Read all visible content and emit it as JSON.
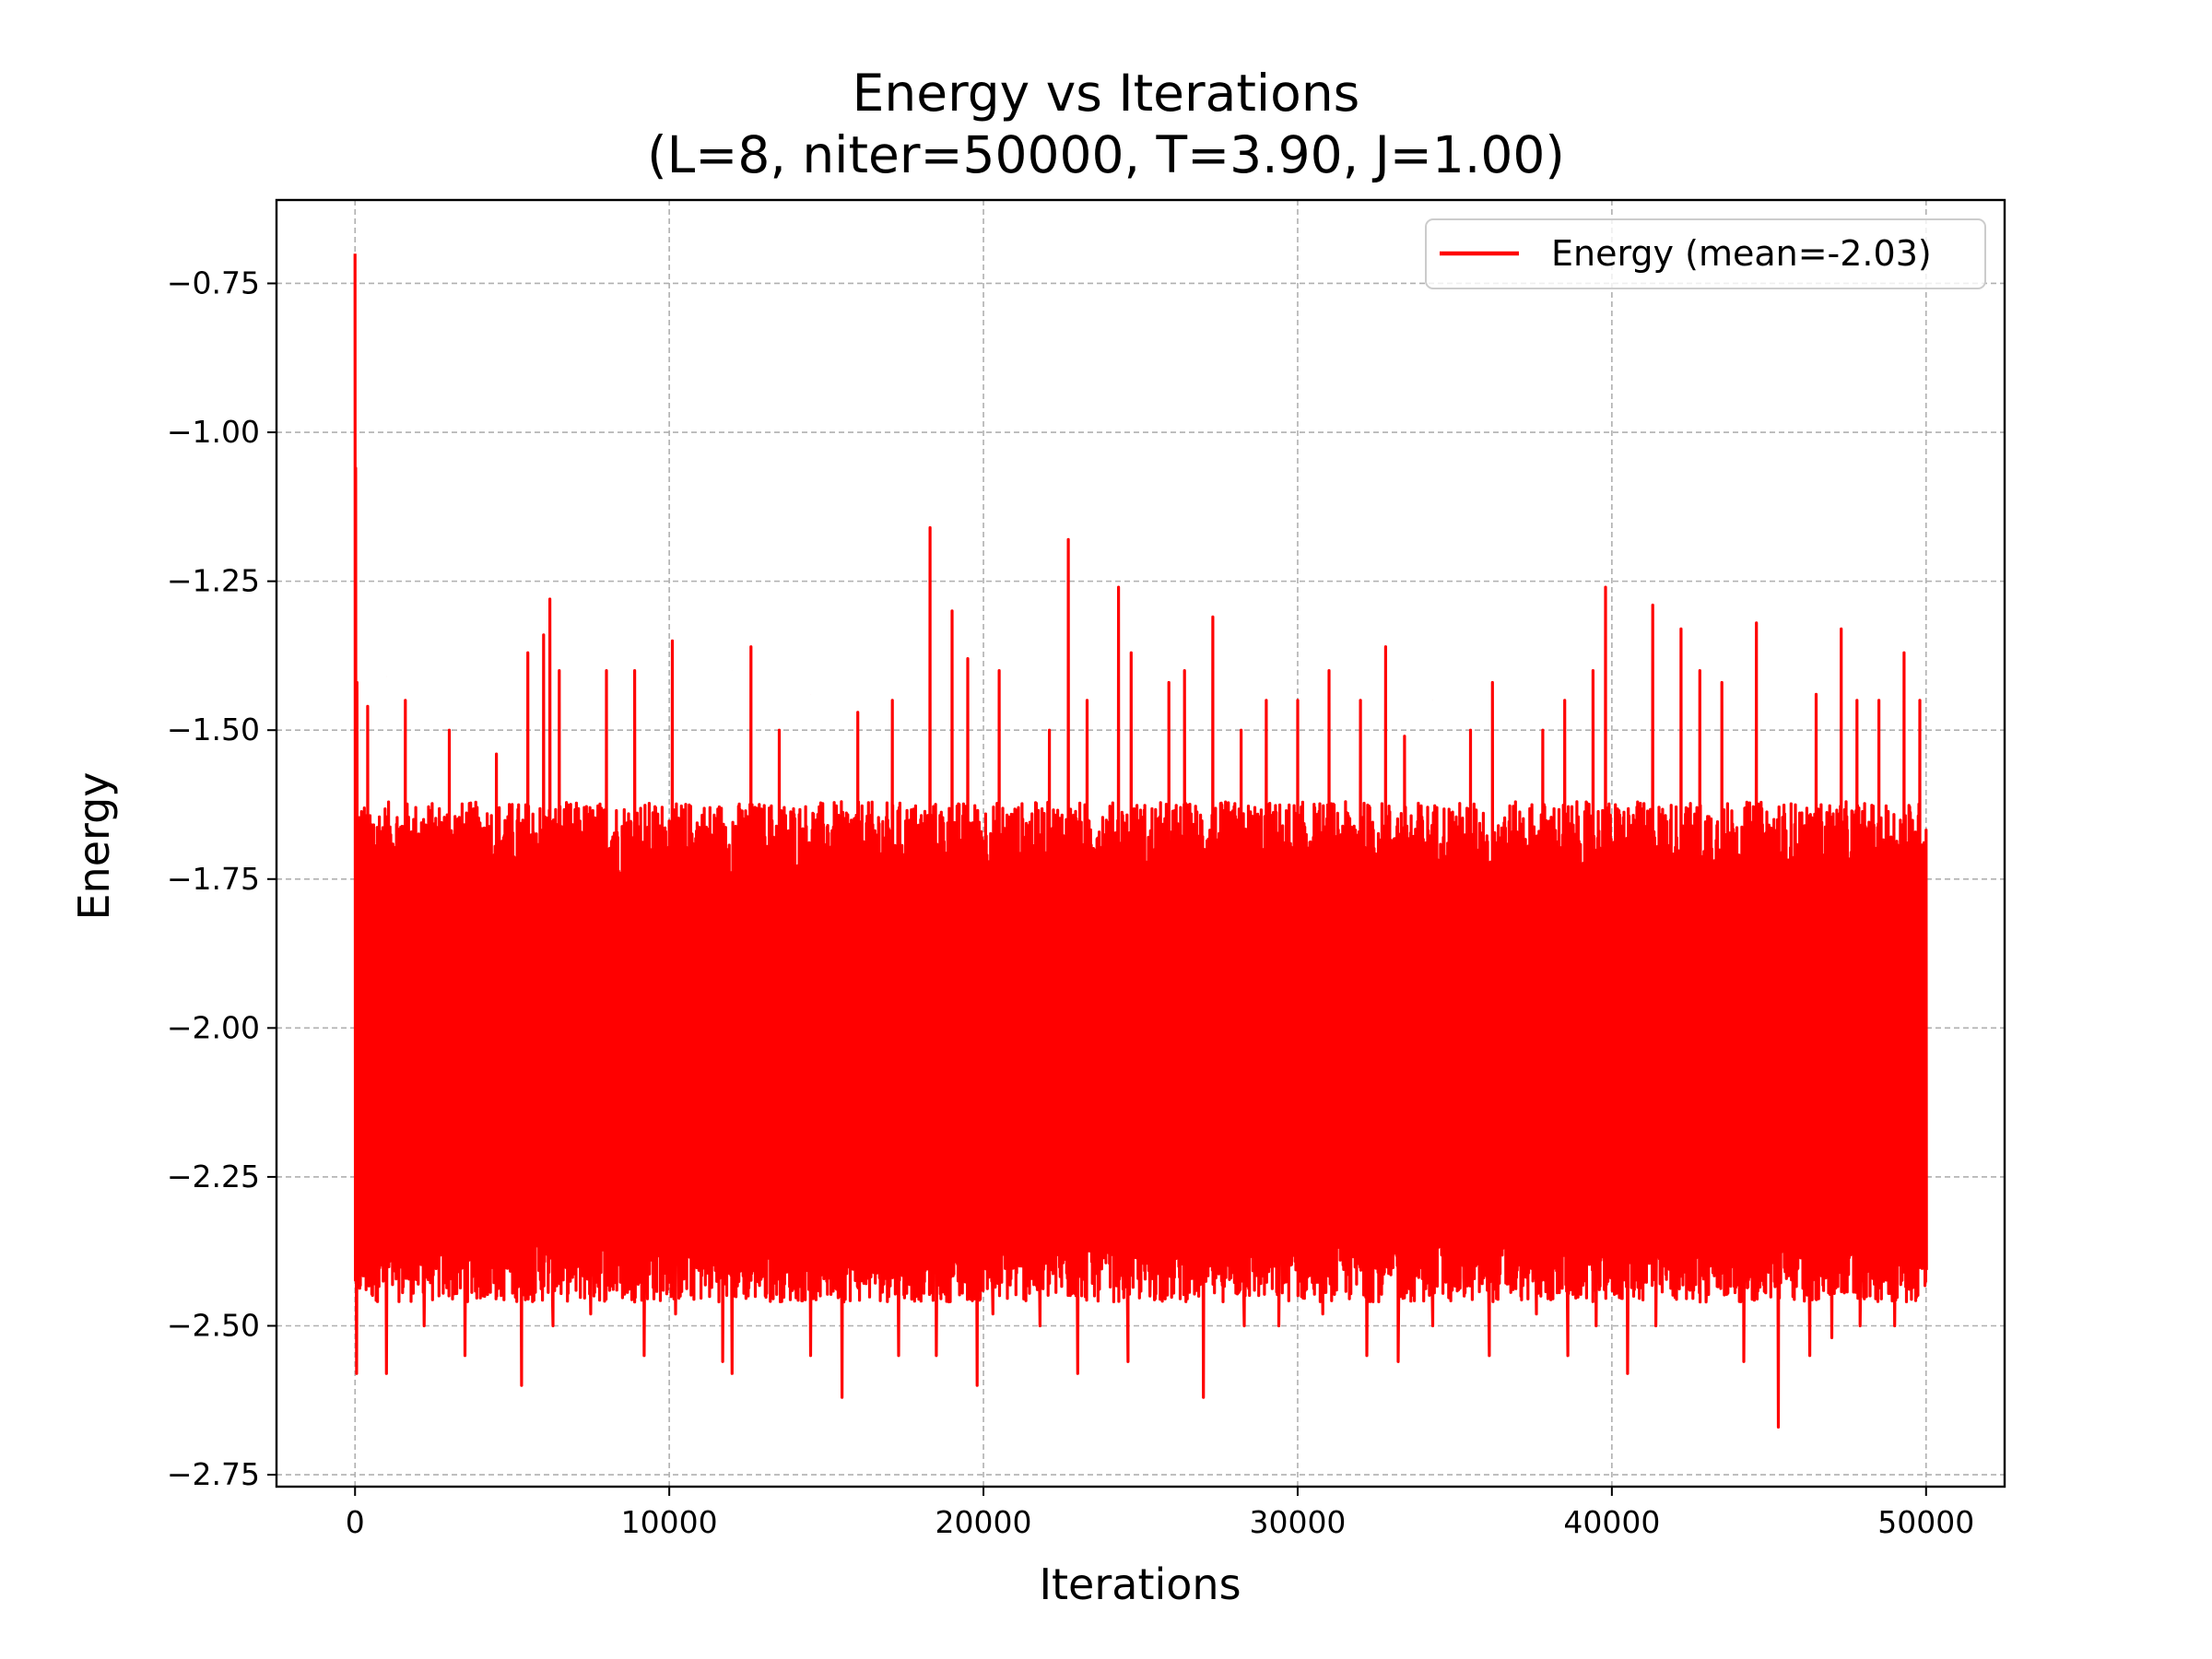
{
  "chart_data": {
    "type": "line",
    "title_lines": [
      "Energy vs Iterations",
      "(L=8, niter=50000, T=3.90, J=1.00)"
    ],
    "xlabel": "Iterations",
    "ylabel": "Energy",
    "xlim": [
      -2500,
      52500
    ],
    "ylim": [
      -2.77,
      -0.61
    ],
    "xticks": [
      0,
      10000,
      20000,
      30000,
      40000,
      50000
    ],
    "xtick_labels": [
      "0",
      "10000",
      "20000",
      "30000",
      "40000",
      "50000"
    ],
    "yticks": [
      -0.75,
      -1.0,
      -1.25,
      -1.5,
      -1.75,
      -2.0,
      -2.25,
      -2.5,
      -2.75
    ],
    "ytick_labels": [
      "−0.75",
      "−1.00",
      "−1.25",
      "−1.50",
      "−1.75",
      "−2.00",
      "−2.25",
      "−2.50",
      "−2.75"
    ],
    "grid": true,
    "legend_position": "upper right",
    "series": [
      {
        "name": "Energy (mean=-2.03)",
        "color": "#ff0000",
        "x_range": [
          0,
          50000
        ],
        "band_low_range": [
          -2.46,
          -2.34
        ],
        "band_high_range": [
          -1.75,
          -1.62
        ],
        "peaks": [
          [
            0,
            -0.7
          ],
          [
            20,
            -1.06
          ],
          [
            60,
            -1.42
          ],
          [
            400,
            -1.46
          ],
          [
            1000,
            -1.41
          ],
          [
            1600,
            -1.45
          ],
          [
            3000,
            -1.5
          ],
          [
            4500,
            -1.54
          ],
          [
            5500,
            -1.37
          ],
          [
            6000,
            -1.34
          ],
          [
            6200,
            -1.28
          ],
          [
            6500,
            -1.4
          ],
          [
            8000,
            -1.4
          ],
          [
            8900,
            -1.4
          ],
          [
            10100,
            -1.35
          ],
          [
            12000,
            -1.4
          ],
          [
            12600,
            -1.36
          ],
          [
            13500,
            -1.5
          ],
          [
            14500,
            -1.44
          ],
          [
            16000,
            -1.47
          ],
          [
            17100,
            -1.45
          ],
          [
            18300,
            -1.16
          ],
          [
            19000,
            -1.3
          ],
          [
            19500,
            -1.38
          ],
          [
            20500,
            -1.4
          ],
          [
            22100,
            -1.5
          ],
          [
            22700,
            -1.18
          ],
          [
            23300,
            -1.45
          ],
          [
            24300,
            -1.26
          ],
          [
            24700,
            -1.37
          ],
          [
            25900,
            -1.42
          ],
          [
            26400,
            -1.4
          ],
          [
            27300,
            -1.31
          ],
          [
            28200,
            -1.5
          ],
          [
            29000,
            -1.45
          ],
          [
            30000,
            -1.45
          ],
          [
            31000,
            -1.4
          ],
          [
            32000,
            -1.45
          ],
          [
            32800,
            -1.36
          ],
          [
            33400,
            -1.51
          ],
          [
            34300,
            -1.45
          ],
          [
            35500,
            -1.5
          ],
          [
            36200,
            -1.42
          ],
          [
            37800,
            -1.5
          ],
          [
            38500,
            -1.45
          ],
          [
            39400,
            -1.4
          ],
          [
            39800,
            -1.26
          ],
          [
            40500,
            -1.5
          ],
          [
            41300,
            -1.29
          ],
          [
            42200,
            -1.33
          ],
          [
            42800,
            -1.4
          ],
          [
            43500,
            -1.42
          ],
          [
            44600,
            -1.32
          ],
          [
            45300,
            -1.5
          ],
          [
            46500,
            -1.44
          ],
          [
            47300,
            -1.33
          ],
          [
            47800,
            -1.45
          ],
          [
            48500,
            -1.45
          ],
          [
            49300,
            -1.37
          ],
          [
            49800,
            -1.45
          ]
        ],
        "troughs": [
          [
            50,
            -2.58
          ],
          [
            1000,
            -2.58
          ],
          [
            2200,
            -2.5
          ],
          [
            3500,
            -2.55
          ],
          [
            5300,
            -2.6
          ],
          [
            6300,
            -2.5
          ],
          [
            7500,
            -2.48
          ],
          [
            9200,
            -2.55
          ],
          [
            10200,
            -2.48
          ],
          [
            11700,
            -2.56
          ],
          [
            12000,
            -2.58
          ],
          [
            13300,
            -2.45
          ],
          [
            14500,
            -2.55
          ],
          [
            15500,
            -2.62
          ],
          [
            17300,
            -2.55
          ],
          [
            18500,
            -2.55
          ],
          [
            19800,
            -2.6
          ],
          [
            20300,
            -2.48
          ],
          [
            21800,
            -2.5
          ],
          [
            23000,
            -2.58
          ],
          [
            24600,
            -2.56
          ],
          [
            25300,
            -2.45
          ],
          [
            27000,
            -2.62
          ],
          [
            28300,
            -2.5
          ],
          [
            29400,
            -2.5
          ],
          [
            30800,
            -2.48
          ],
          [
            32200,
            -2.55
          ],
          [
            33200,
            -2.56
          ],
          [
            34300,
            -2.5
          ],
          [
            35300,
            -2.45
          ],
          [
            36100,
            -2.55
          ],
          [
            37600,
            -2.48
          ],
          [
            38600,
            -2.55
          ],
          [
            39500,
            -2.5
          ],
          [
            40500,
            -2.58
          ],
          [
            41400,
            -2.5
          ],
          [
            43000,
            -2.46
          ],
          [
            44200,
            -2.56
          ],
          [
            45300,
            -2.67
          ],
          [
            46300,
            -2.55
          ],
          [
            47000,
            -2.52
          ],
          [
            47900,
            -2.5
          ],
          [
            49000,
            -2.5
          ]
        ]
      }
    ]
  }
}
